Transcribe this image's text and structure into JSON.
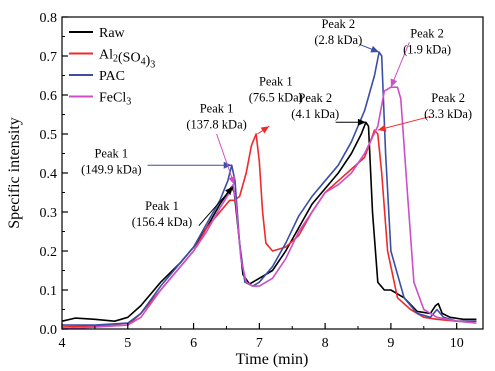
{
  "chart_data": {
    "type": "line",
    "xlabel": "Time (min)",
    "ylabel": "Specific intensity",
    "xlim": [
      4,
      10.4
    ],
    "ylim": [
      0,
      0.8
    ],
    "x_ticks": [
      "4",
      "5",
      "6",
      "7",
      "8",
      "9",
      "10"
    ],
    "y_ticks": [
      "0.0",
      "0.1",
      "0.2",
      "0.3",
      "0.4",
      "0.5",
      "0.6",
      "0.7",
      "0.8"
    ],
    "grid": false,
    "legend_position": "top-left",
    "legend": [
      {
        "name": "Raw",
        "color": "#000000"
      },
      {
        "name": "Al2(SO4)3",
        "color": "#ee2b2b",
        "parts": [
          [
            "Al",
            ""
          ],
          [
            "2",
            "sub"
          ],
          [
            "(SO",
            ""
          ],
          [
            "4",
            "sub"
          ],
          [
            ")",
            ""
          ],
          [
            "3",
            "sub"
          ]
        ]
      },
      {
        "name": "PAC",
        "color": "#3a4fa3"
      },
      {
        "name": "FeCl3",
        "color": "#cc4fc8",
        "parts": [
          [
            "FeCl",
            ""
          ],
          [
            "3",
            "sub"
          ]
        ]
      }
    ],
    "series": [
      {
        "name": "Raw",
        "color": "#000000",
        "x": [
          4.0,
          4.2,
          4.5,
          4.8,
          5.0,
          5.2,
          5.5,
          5.8,
          6.0,
          6.2,
          6.4,
          6.5,
          6.58,
          6.62,
          6.7,
          6.75,
          6.85,
          7.0,
          7.2,
          7.4,
          7.6,
          7.8,
          8.0,
          8.2,
          8.4,
          8.55,
          8.62,
          8.66,
          8.72,
          8.8,
          8.9,
          9.0,
          9.2,
          9.4,
          9.6,
          9.68,
          9.72,
          9.78,
          9.9,
          10.1,
          10.3
        ],
        "y": [
          0.02,
          0.028,
          0.025,
          0.02,
          0.03,
          0.06,
          0.12,
          0.17,
          0.21,
          0.26,
          0.32,
          0.345,
          0.365,
          0.35,
          0.22,
          0.14,
          0.115,
          0.13,
          0.15,
          0.2,
          0.26,
          0.32,
          0.36,
          0.4,
          0.45,
          0.5,
          0.53,
          0.52,
          0.3,
          0.12,
          0.1,
          0.1,
          0.08,
          0.045,
          0.04,
          0.06,
          0.065,
          0.04,
          0.03,
          0.025,
          0.025
        ]
      },
      {
        "name": "Al2(SO4)3",
        "color": "#ee2b2b",
        "x": [
          4.0,
          4.5,
          5.0,
          5.2,
          5.5,
          5.8,
          6.0,
          6.2,
          6.4,
          6.55,
          6.62,
          6.7,
          6.8,
          6.88,
          6.95,
          7.0,
          7.05,
          7.1,
          7.2,
          7.4,
          7.6,
          7.8,
          8.0,
          8.2,
          8.4,
          8.6,
          8.75,
          8.8,
          8.86,
          8.95,
          9.1,
          9.3,
          9.5,
          9.7,
          10.0,
          10.3
        ],
        "y": [
          0.005,
          0.008,
          0.01,
          0.04,
          0.1,
          0.16,
          0.2,
          0.26,
          0.3,
          0.33,
          0.33,
          0.34,
          0.4,
          0.47,
          0.5,
          0.43,
          0.3,
          0.22,
          0.2,
          0.21,
          0.24,
          0.3,
          0.35,
          0.38,
          0.41,
          0.44,
          0.51,
          0.5,
          0.4,
          0.2,
          0.08,
          0.05,
          0.03,
          0.025,
          0.02,
          0.02
        ]
      },
      {
        "name": "PAC",
        "color": "#3a4fa3",
        "x": [
          4.0,
          4.5,
          5.0,
          5.2,
          5.5,
          5.8,
          6.0,
          6.2,
          6.4,
          6.52,
          6.58,
          6.63,
          6.7,
          6.78,
          6.9,
          7.0,
          7.2,
          7.4,
          7.6,
          7.8,
          8.0,
          8.2,
          8.4,
          8.6,
          8.75,
          8.82,
          8.86,
          8.92,
          9.0,
          9.2,
          9.4,
          9.6,
          9.7,
          9.8,
          10.0,
          10.3
        ],
        "y": [
          0.01,
          0.01,
          0.015,
          0.04,
          0.11,
          0.17,
          0.21,
          0.27,
          0.33,
          0.38,
          0.42,
          0.38,
          0.22,
          0.12,
          0.11,
          0.12,
          0.16,
          0.22,
          0.29,
          0.34,
          0.38,
          0.42,
          0.48,
          0.56,
          0.65,
          0.71,
          0.7,
          0.45,
          0.2,
          0.08,
          0.04,
          0.03,
          0.05,
          0.03,
          0.02,
          0.02
        ]
      },
      {
        "name": "FeCl3",
        "color": "#cc4fc8",
        "x": [
          4.0,
          4.5,
          5.0,
          5.2,
          5.5,
          5.8,
          6.0,
          6.2,
          6.4,
          6.55,
          6.6,
          6.64,
          6.72,
          6.8,
          6.9,
          7.0,
          7.2,
          7.4,
          7.6,
          7.8,
          8.0,
          8.2,
          8.4,
          8.6,
          8.8,
          8.9,
          9.0,
          9.1,
          9.15,
          9.25,
          9.35,
          9.5,
          9.7,
          10.0,
          10.3
        ],
        "y": [
          0.0,
          0.005,
          0.01,
          0.03,
          0.1,
          0.16,
          0.2,
          0.25,
          0.31,
          0.35,
          0.37,
          0.33,
          0.18,
          0.12,
          0.11,
          0.11,
          0.13,
          0.18,
          0.25,
          0.3,
          0.35,
          0.37,
          0.4,
          0.45,
          0.52,
          0.61,
          0.62,
          0.62,
          0.59,
          0.35,
          0.12,
          0.05,
          0.03,
          0.02,
          0.015
        ]
      }
    ],
    "annotations": [
      {
        "lines": [
          "Peak 1",
          "(156.4 kDa)"
        ],
        "color": "#000000",
        "point": [
          6.6,
          0.365
        ],
        "from": [
          6.08,
          0.265
        ],
        "text_at": [
          5.52,
          0.305
        ]
      },
      {
        "lines": [
          "Peak 1",
          "(149.9 kDa)"
        ],
        "color": "#3a4fa3",
        "point": [
          6.58,
          0.42
        ],
        "from": [
          5.3,
          0.42
        ],
        "text_at": [
          4.75,
          0.44
        ]
      },
      {
        "lines": [
          "Peak 1",
          "(137.8 kDa)"
        ],
        "color": "#cc4fc8",
        "point": [
          6.62,
          0.37
        ],
        "from": [
          6.35,
          0.5
        ],
        "text_at": [
          6.35,
          0.555
        ]
      },
      {
        "lines": [
          "Peak 1",
          "(76.5 kDa)"
        ],
        "color": "#ee2b2b",
        "point": [
          7.15,
          0.52
        ],
        "from": [
          6.97,
          0.5
        ],
        "text_at": [
          7.25,
          0.625
        ]
      },
      {
        "lines": [
          "Peak 2",
          "(4.1 kDa)"
        ],
        "color": "#000000",
        "point": [
          8.62,
          0.53
        ],
        "from": [
          8.16,
          0.53
        ],
        "text_at": [
          7.85,
          0.582
        ]
      },
      {
        "lines": [
          "Peak 2",
          "(2.8 kDa)"
        ],
        "color": "#3a4fa3",
        "point": [
          8.82,
          0.71
        ],
        "from": [
          8.52,
          0.73
        ],
        "text_at": [
          8.2,
          0.772
        ]
      },
      {
        "lines": [
          "Peak 2",
          "(1.9 kDa)"
        ],
        "color": "#cc4fc8",
        "point": [
          9.0,
          0.62
        ],
        "from": [
          9.28,
          0.735
        ],
        "text_at": [
          9.55,
          0.747
        ]
      },
      {
        "lines": [
          "Peak 2",
          "(3.3 kDa)"
        ],
        "color": "#ee2b2b",
        "point": [
          8.8,
          0.51
        ],
        "from": [
          9.6,
          0.545
        ],
        "text_at": [
          9.87,
          0.582
        ]
      }
    ]
  }
}
